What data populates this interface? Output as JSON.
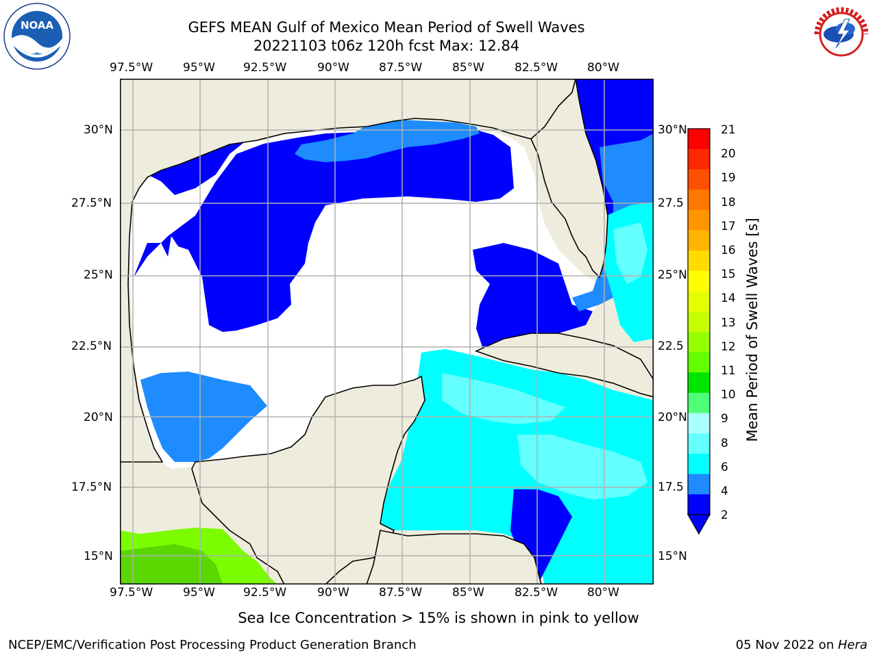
{
  "header": {
    "title_line1": "GEFS MEAN Gulf of Mexico Mean Period of Swell Waves",
    "title_line2": "20221103 t06z 120h fcst   Max: 12.84"
  },
  "logos": {
    "left": "NOAA",
    "right": "NATIONAL WEATHER SERVICE"
  },
  "map": {
    "lon_labels": [
      "97.5°W",
      "95°W",
      "92.5°W",
      "90°W",
      "87.5°W",
      "85°W",
      "82.5°W",
      "80°W"
    ],
    "lat_labels": [
      "30°N",
      "27.5°N",
      "25°N",
      "22.5°N",
      "20°N",
      "17.5°N",
      "15°N"
    ],
    "right_lat_labels": [
      "30°N",
      "27.5",
      "25°N",
      "22.5",
      "20°N",
      "17.5",
      "15°N"
    ],
    "colors": {
      "land": "#eeeddd",
      "undefined": "#ffffff",
      "period_2_4": "#0000ff",
      "period_4_6": "#1e8cff",
      "period_6_8": "#00ffff",
      "period_8_9": "#64ffff",
      "period_11_13": "#7cfc00"
    }
  },
  "colorbar": {
    "label": "Mean Period of Swell Waves [s]",
    "ticks": [
      "21",
      "20",
      "19",
      "18",
      "17",
      "16",
      "15",
      "14",
      "13",
      "12",
      "11",
      "10",
      "9",
      "8",
      "6",
      "4",
      "2"
    ],
    "colors": [
      "#ff0000",
      "#ff2800",
      "#ff5000",
      "#ff7800",
      "#ff9600",
      "#ffb400",
      "#ffdc00",
      "#ffff00",
      "#e6ff00",
      "#c8ff00",
      "#96ff00",
      "#64ff00",
      "#00e600",
      "#50ff78",
      "#aaffff",
      "#64ffff",
      "#00ffff",
      "#1e8cff",
      "#0000ff"
    ]
  },
  "footer": {
    "note": "Sea Ice Concentration > 15% is shown in pink to yellow",
    "credit": "NCEP/EMC/Verification Post Processing Product Generation Branch",
    "date": "05 Nov 2022 on ",
    "machine": "Hera"
  }
}
